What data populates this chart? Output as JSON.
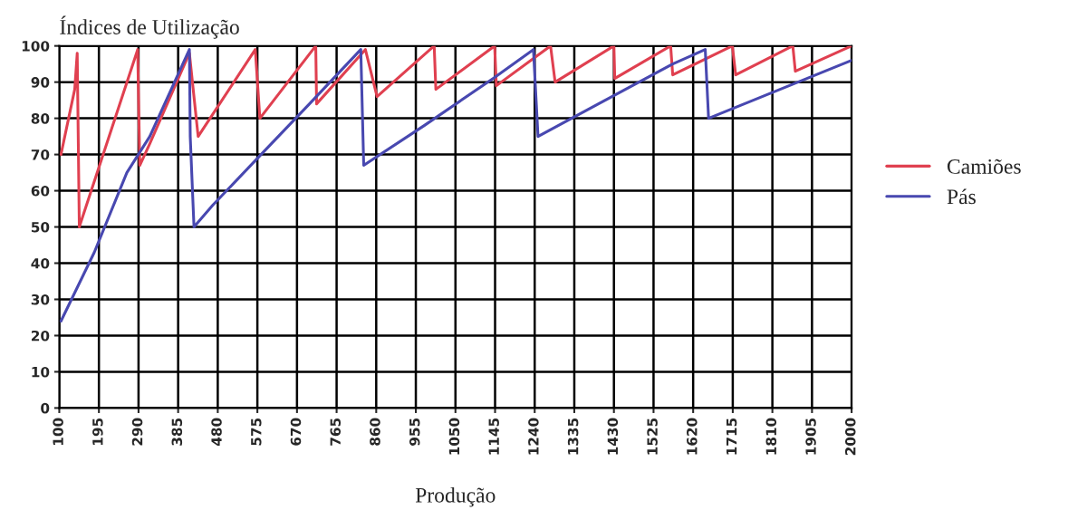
{
  "chart_data": {
    "type": "line",
    "ylabel": "Índices de Utilização",
    "xlabel": "Produção",
    "xlim": [
      100,
      2000
    ],
    "ylim": [
      0,
      100
    ],
    "xticks": [
      100,
      195,
      290,
      385,
      480,
      575,
      670,
      765,
      860,
      955,
      1050,
      1145,
      1240,
      1335,
      1430,
      1525,
      1620,
      1715,
      1810,
      1905,
      2000
    ],
    "yticks": [
      0,
      10,
      20,
      30,
      40,
      50,
      60,
      70,
      80,
      90,
      100
    ],
    "grid": true,
    "legend": "right",
    "marker": "none",
    "line_style": "solid",
    "series": [
      {
        "name": "Camiões",
        "color": "#e04050",
        "x": [
          104,
          137,
          143,
          148,
          288,
          293,
          317,
          412,
          433,
          570,
          581,
          715,
          717,
          834,
          862,
          999,
          1003,
          1144,
          1148,
          1278,
          1289,
          1430,
          1432,
          1566,
          1571,
          1714,
          1722,
          1859,
          1865,
          2000
        ],
        "values": [
          70,
          88,
          98,
          50,
          99,
          67,
          73,
          98,
          75,
          99,
          80,
          100,
          84,
          99,
          86,
          100,
          88,
          100,
          89,
          100,
          90,
          100,
          91,
          100,
          92,
          100,
          92,
          100,
          93,
          100
        ]
      },
      {
        "name": "Pás",
        "color": "#4848b0",
        "x": [
          104,
          184,
          262,
          317,
          412,
          414,
          423,
          468,
          592,
          700,
          823,
          830,
          975,
          1140,
          1237,
          1248,
          1393,
          1571,
          1649,
          1657,
          2000
        ],
        "values": [
          24,
          43,
          65,
          75,
          99,
          75,
          50,
          56,
          71,
          84,
          99,
          67,
          78,
          91,
          99,
          75,
          84,
          95,
          99,
          80,
          96
        ]
      }
    ]
  }
}
